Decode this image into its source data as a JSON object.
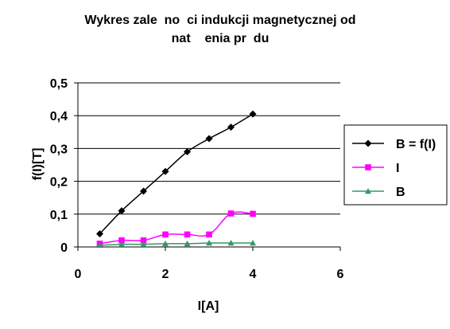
{
  "chart_data": {
    "type": "line",
    "title_lines": [
      "Wykres zale  no  ci indukcji magnetycznej od",
      "nat    enia pr  du"
    ],
    "xlabel": "I[A]",
    "ylabel": "f(I)[T]",
    "xlim": [
      0,
      6
    ],
    "ylim": [
      0,
      0.5
    ],
    "x_ticks": [
      0,
      2,
      4,
      6
    ],
    "x_tick_labels": [
      "0",
      "2",
      "4",
      "6"
    ],
    "y_ticks": [
      0,
      0.1,
      0.2,
      0.3,
      0.4,
      0.5
    ],
    "y_tick_labels": [
      "0",
      "0,1",
      "0,2",
      "0,3",
      "0,4",
      "0,5"
    ],
    "grid": "horizontal",
    "legend_position": "right",
    "series": [
      {
        "name": "B = f(I)",
        "color": "#000000",
        "marker": "diamond",
        "x": [
          0.5,
          1.0,
          1.5,
          2.0,
          2.5,
          3.0,
          3.5,
          4.0
        ],
        "y": [
          0.04,
          0.11,
          0.17,
          0.23,
          0.29,
          0.33,
          0.365,
          0.405
        ]
      },
      {
        "name": "I",
        "color": "#ff00ff",
        "marker": "square",
        "x": [
          0.5,
          1.0,
          1.5,
          2.0,
          2.5,
          3.0,
          3.5,
          4.0
        ],
        "y": [
          0.01,
          0.02,
          0.02,
          0.038,
          0.038,
          0.038,
          0.102,
          0.101
        ]
      },
      {
        "name": "B",
        "color": "#339966",
        "marker": "triangle",
        "x": [
          0.5,
          1.0,
          1.5,
          2.0,
          2.5,
          3.0,
          3.5,
          4.0
        ],
        "y": [
          0.005,
          0.008,
          0.008,
          0.01,
          0.01,
          0.012,
          0.012,
          0.012
        ]
      }
    ]
  }
}
